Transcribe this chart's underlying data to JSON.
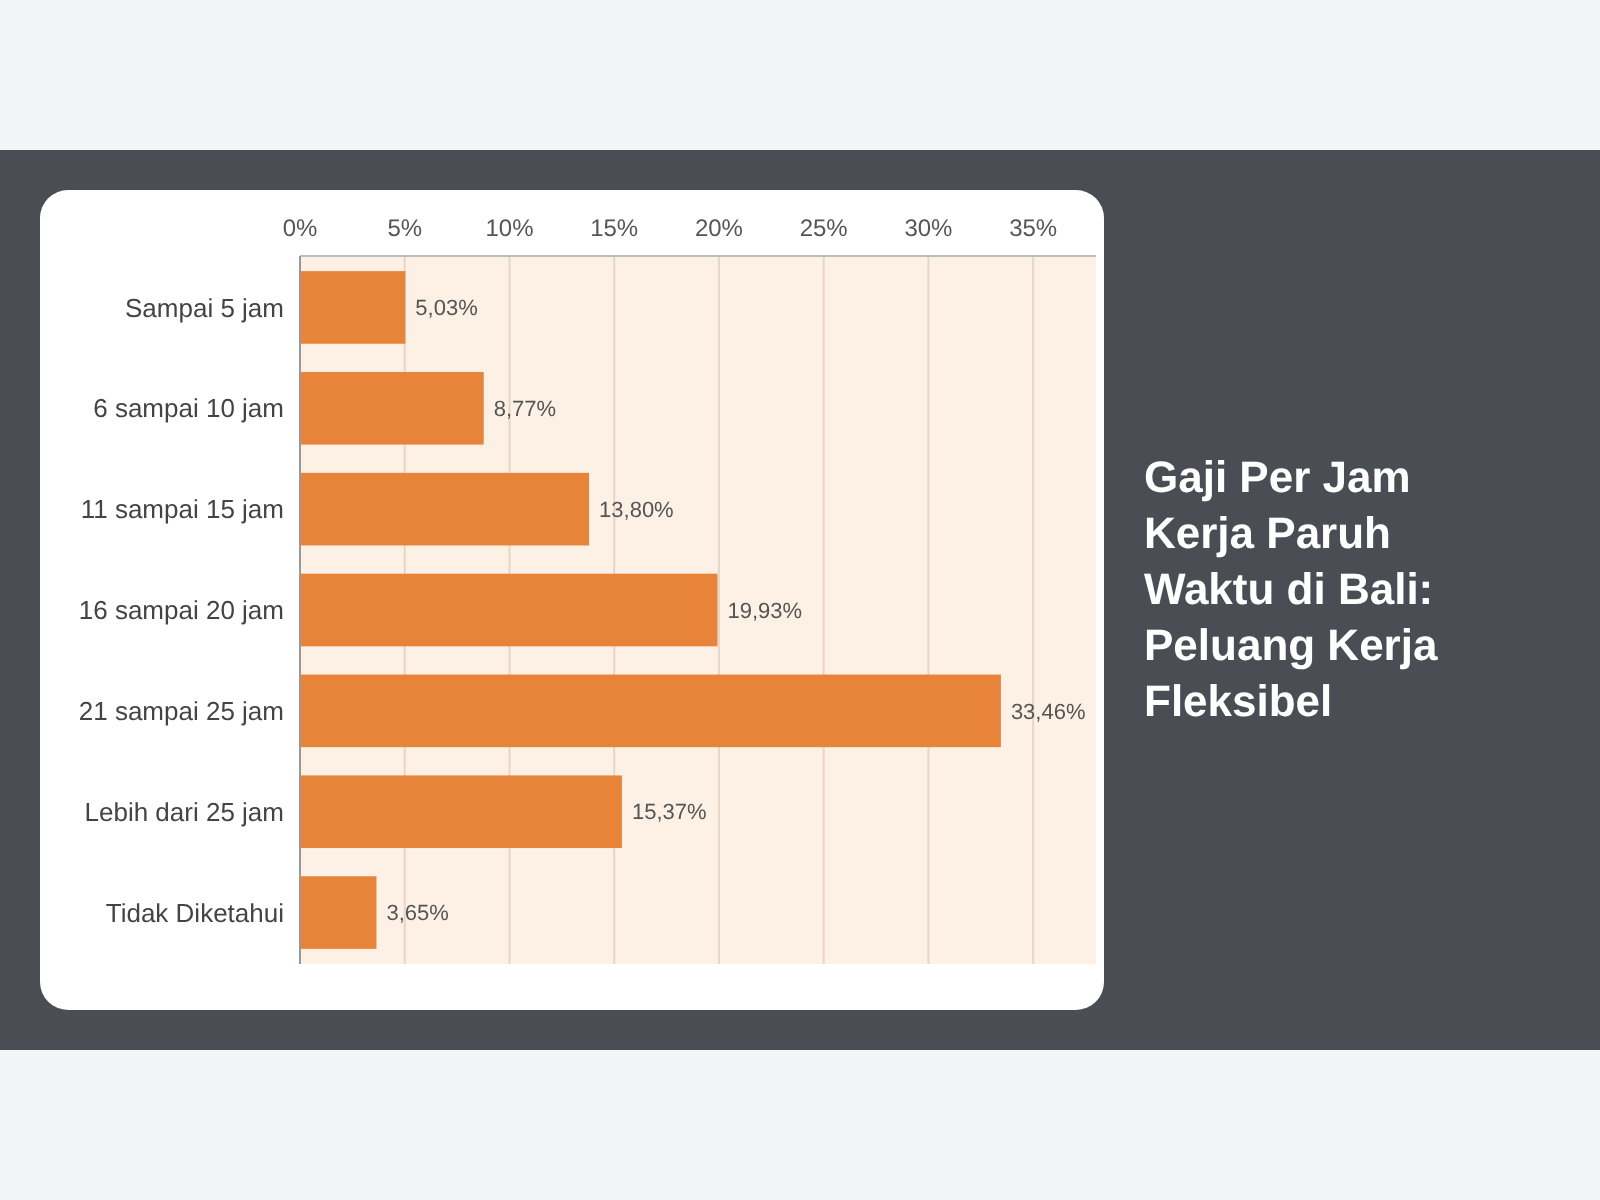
{
  "chart_data": {
    "type": "bar",
    "orientation": "horizontal",
    "title": "Gaji Per Jam Kerja Paruh Waktu di Bali: Peluang Kerja Fleksibel",
    "categories": [
      "Sampai 5 jam",
      "6 sampai 10 jam",
      "11 sampai 15 jam",
      "16 sampai 20 jam",
      "21 sampai 25 jam",
      "Lebih dari 25 jam",
      "Tidak Diketahui"
    ],
    "values": [
      5.03,
      8.77,
      13.8,
      19.93,
      33.46,
      15.37,
      3.65
    ],
    "value_labels": [
      "5,03%",
      "8,77%",
      "13,80%",
      "19,93%",
      "33,46%",
      "15,37%",
      "3,65%"
    ],
    "color": "#e8843a",
    "xlim": [
      0,
      38
    ],
    "xticks": [
      {
        "value": 0,
        "label": "0%"
      },
      {
        "value": 5,
        "label": "5%"
      },
      {
        "value": 10,
        "label": "10%"
      },
      {
        "value": 15,
        "label": "15%"
      },
      {
        "value": 20,
        "label": "20%"
      },
      {
        "value": 25,
        "label": "25%"
      },
      {
        "value": 30,
        "label": "30%"
      },
      {
        "value": 35,
        "label": "35%"
      }
    ],
    "grid": "x"
  }
}
